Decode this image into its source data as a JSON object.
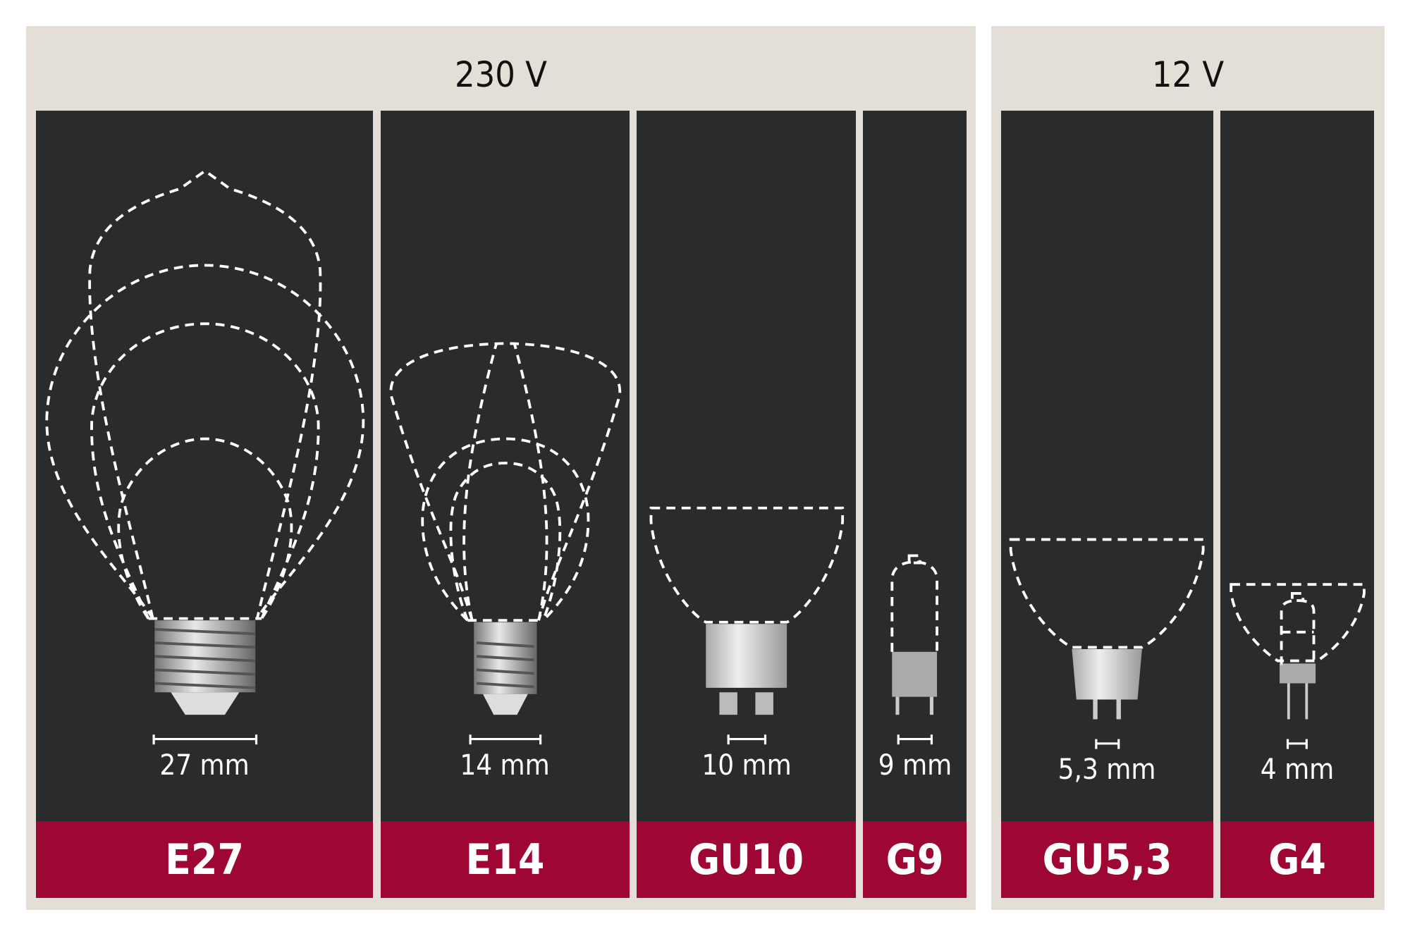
{
  "groups": [
    {
      "title": "230 V"
    },
    {
      "title": "12 V"
    }
  ],
  "sockets": [
    {
      "name": "E27",
      "dimension": "27 mm"
    },
    {
      "name": "E14",
      "dimension": "14 mm"
    },
    {
      "name": "GU10",
      "dimension": "10 mm"
    },
    {
      "name": "G9",
      "dimension": "9 mm"
    },
    {
      "name": "GU5,3",
      "dimension": "5,3 mm"
    },
    {
      "name": "G4",
      "dimension": "4 mm"
    }
  ],
  "colors": {
    "background": "#e4dfd6",
    "panel": "#2a2b2d",
    "label": "#9e0634"
  }
}
